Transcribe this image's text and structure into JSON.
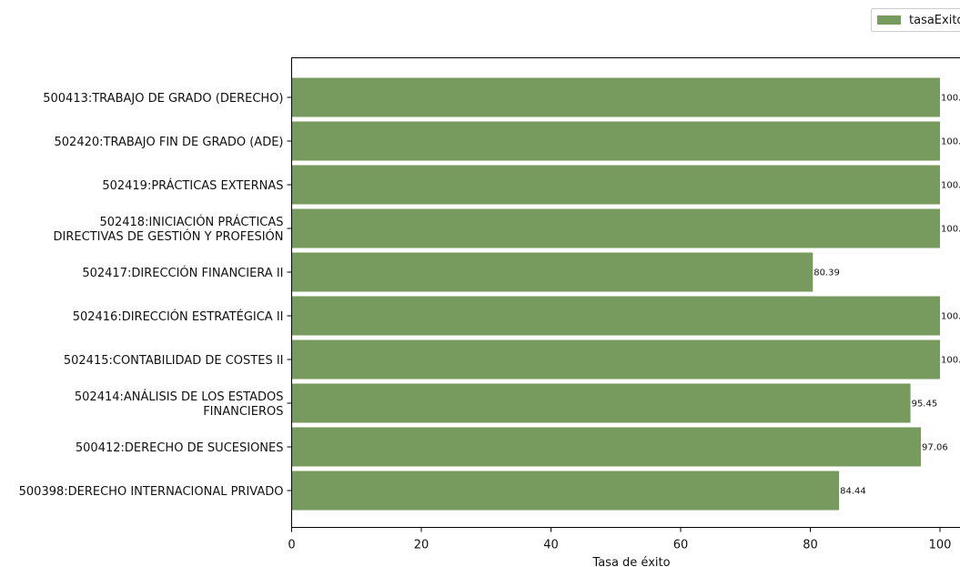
{
  "chart_data": {
    "type": "bar",
    "orientation": "horizontal",
    "categories": [
      "500413:TRABAJO DE GRADO (DERECHO)",
      "502420:TRABAJO FIN DE GRADO (ADE)",
      "502419:PRÁCTICAS EXTERNAS",
      "502418:INICIACIÓN PRÁCTICAS\nDIRECTIVAS DE GESTIÓN Y PROFESIÓN",
      "502417:DIRECCIÓN FINANCIERA II",
      "502416:DIRECCIÓN ESTRATÉGICA II",
      "502415:CONTABILIDAD DE COSTES II",
      "502414:ANÁLISIS DE LOS ESTADOS\nFINANCIEROS",
      "500412:DERECHO DE SUCESIONES",
      "500398:DERECHO INTERNACIONAL PRIVADO"
    ],
    "series": [
      {
        "name": "tasaExito",
        "values": [
          100.0,
          100.0,
          100.0,
          100.0,
          80.39,
          100.0,
          100.0,
          95.45,
          97.06,
          84.44
        ]
      }
    ],
    "data_labels": [
      "100.",
      "100.",
      "100.",
      "100.",
      "80.39",
      "100.",
      "100.",
      "95.45",
      "97.06",
      "84.44"
    ],
    "xlabel": "Tasa de éxito",
    "ylabel": "",
    "xlim": [
      0,
      100
    ],
    "xticks": [
      0,
      20,
      40,
      60,
      80,
      100
    ],
    "legend_position": "top-right",
    "grid": false,
    "colors": {
      "bar": "#779b5e"
    }
  }
}
